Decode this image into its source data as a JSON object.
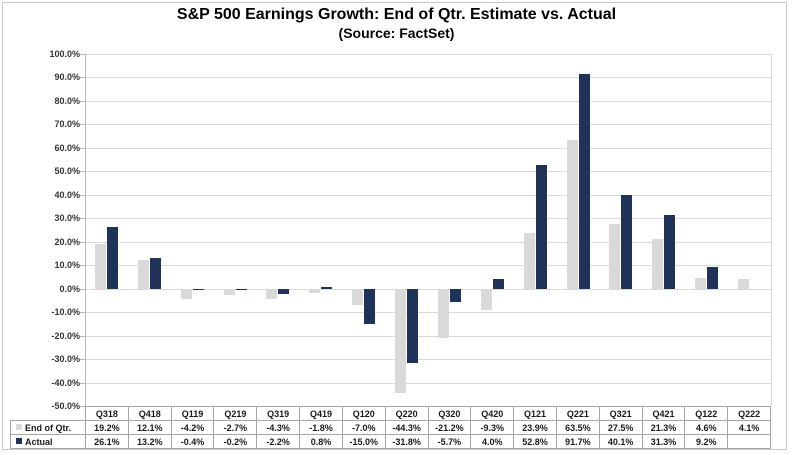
{
  "header": {
    "title": "S&P 500 Earnings Growth: End of Qtr. Estimate vs. Actual",
    "subtitle": "(Source: FactSet)"
  },
  "chart_data": {
    "type": "bar",
    "title": "S&P 500 Earnings Growth: End of Qtr. Estimate vs. Actual",
    "subtitle": "(Source: FactSet)",
    "categories": [
      "Q318",
      "Q418",
      "Q119",
      "Q219",
      "Q319",
      "Q419",
      "Q120",
      "Q220",
      "Q320",
      "Q420",
      "Q121",
      "Q221",
      "Q321",
      "Q421",
      "Q122",
      "Q222"
    ],
    "series": [
      {
        "name": "End of Qtr.",
        "color": "#D9D9D9",
        "values": [
          19.2,
          12.1,
          -4.2,
          -2.7,
          -4.3,
          -1.8,
          -7.0,
          -44.3,
          -21.2,
          -9.3,
          23.9,
          63.5,
          27.5,
          21.3,
          4.6,
          4.1
        ]
      },
      {
        "name": "Actual",
        "color": "#1F3359",
        "values": [
          26.1,
          13.2,
          -0.4,
          -0.2,
          -2.2,
          0.8,
          -15.0,
          -31.8,
          -5.7,
          4.0,
          52.8,
          91.7,
          40.1,
          31.3,
          9.2,
          null
        ]
      }
    ],
    "xlabel": "",
    "ylabel": "",
    "ylim": [
      -50,
      100
    ],
    "ytick_step": 10,
    "ytick_labels": [
      "100.0%",
      "90.0%",
      "80.0%",
      "70.0%",
      "60.0%",
      "50.0%",
      "40.0%",
      "30.0%",
      "20.0%",
      "10.0%",
      "0.0%",
      "-10.0%",
      "-20.0%",
      "-30.0%",
      "-40.0%",
      "-50.0%"
    ],
    "grid": true,
    "legend_position": "table-left",
    "value_suffix": "%",
    "colors": {
      "grid": "#d9d9d9",
      "axis": "#b7b7b7",
      "table_border": "#a6a6a6",
      "text": "#1a1a1a"
    }
  }
}
